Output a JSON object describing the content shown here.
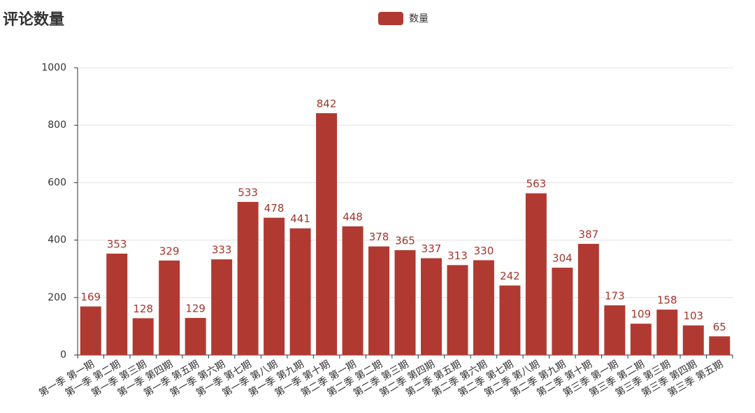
{
  "chart_data": {
    "type": "bar",
    "title": "评论数量",
    "series": [
      {
        "name": "数量",
        "color": "#b03a32",
        "values": [
          169,
          353,
          128,
          329,
          129,
          333,
          533,
          478,
          441,
          842,
          448,
          378,
          365,
          337,
          313,
          330,
          242,
          563,
          304,
          387,
          173,
          109,
          158,
          103,
          65
        ]
      }
    ],
    "categories": [
      "第一季 第一期",
      "第一季 第二期",
      "第一季 第三期",
      "第一季 第四期",
      "第一季 第五期",
      "第一季 第六期",
      "第一季 第七期",
      "第一季 第八期",
      "第一季 第九期",
      "第一季 第十期",
      "第二季 第一期",
      "第二季 第二期",
      "第二季 第三期",
      "第二季 第四期",
      "第二季 第五期",
      "第二季 第六期",
      "第二季 第七期",
      "第二季 第八期",
      "第二季 第九期",
      "第二季 第十期",
      "第三季 第一期",
      "第三季 第二期",
      "第三季 第三期",
      "第三季 第四期",
      "第三季 第五期"
    ],
    "ylim": [
      0,
      1000
    ],
    "yticks": [
      0,
      200,
      400,
      600,
      800,
      1000
    ],
    "grid": true
  }
}
